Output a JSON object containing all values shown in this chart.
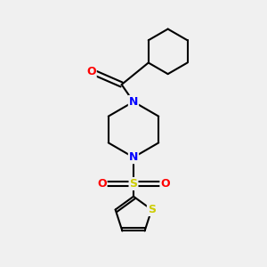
{
  "background_color": "#f0f0f0",
  "bond_color": "#000000",
  "atom_colors": {
    "N": "#0000ff",
    "O": "#ff0000",
    "S_sulfonyl": "#cccc00",
    "S_thiophene": "#cccc00"
  },
  "line_width": 1.5,
  "font_size_atoms": 9,
  "fig_size": [
    3.0,
    3.0
  ],
  "dpi": 100
}
